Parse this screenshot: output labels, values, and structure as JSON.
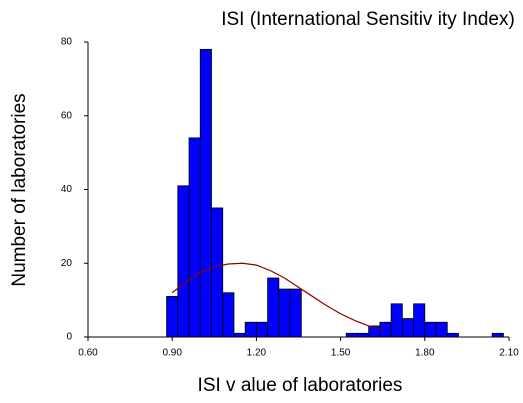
{
  "chart_data": {
    "type": "histogram",
    "title": "ISI (International Sensitiv ity Index)",
    "x_label": "ISI v alue of laboratories",
    "y_label": "Number of laboratories",
    "bins": [
      0.88,
      0.92,
      0.96,
      1.0,
      1.04,
      1.08,
      1.12,
      1.16,
      1.2,
      1.24,
      1.28,
      1.32,
      1.36,
      1.4,
      1.44,
      1.48,
      1.52,
      1.56,
      1.6,
      1.64,
      1.68,
      1.72,
      1.76,
      1.8,
      1.84,
      1.88,
      1.92,
      1.96,
      2.0,
      2.04,
      2.08
    ],
    "values": [
      11,
      41,
      54,
      78,
      35,
      12,
      1,
      4,
      4,
      16,
      13,
      13,
      0,
      0,
      0,
      0,
      1,
      1,
      3,
      4,
      9,
      5,
      9,
      4,
      4,
      1,
      0,
      0,
      0,
      1
    ],
    "color": "#0000ff",
    "curve": {
      "color": "#8b0000",
      "x": [
        0.9,
        0.95,
        1.0,
        1.05,
        1.1,
        1.15,
        1.2,
        1.25,
        1.3,
        1.35,
        1.4,
        1.45,
        1.5,
        1.55,
        1.6,
        1.65
      ],
      "values": [
        12,
        15,
        17.5,
        19,
        19.8,
        20,
        19.5,
        18,
        16,
        13.5,
        11,
        8.5,
        6.3,
        4.5,
        3,
        2
      ]
    },
    "xlim": [
      0.6,
      2.1
    ],
    "xticks": [
      {
        "value": 0.6,
        "label": "0.60"
      },
      {
        "value": 0.9,
        "label": "0.90"
      },
      {
        "value": 1.2,
        "label": "1.20"
      },
      {
        "value": 1.5,
        "label": "1.50"
      },
      {
        "value": 1.8,
        "label": "1.80"
      },
      {
        "value": 2.1,
        "label": "2.10"
      }
    ],
    "ylim": [
      0,
      80
    ],
    "yticks": [
      0,
      20,
      40,
      60,
      80
    ]
  }
}
